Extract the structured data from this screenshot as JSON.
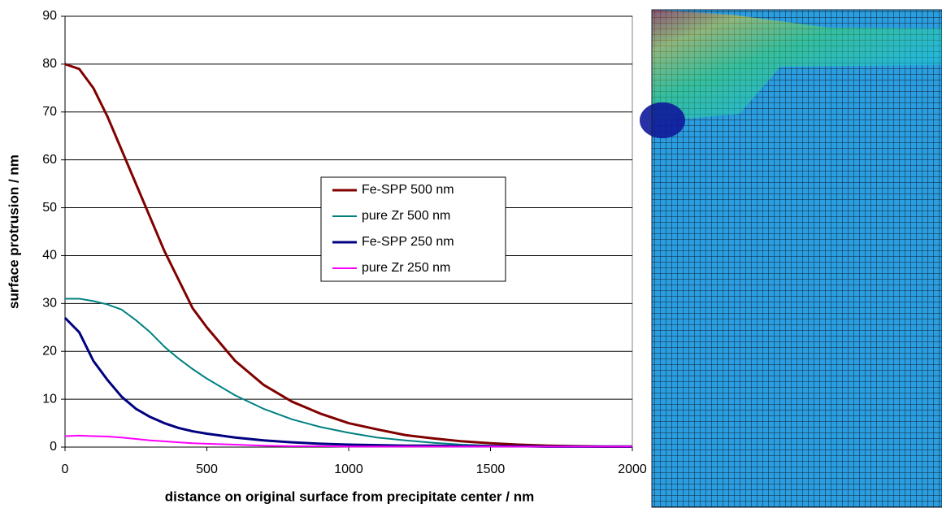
{
  "chart_data": {
    "type": "line",
    "x_label": "distance on original surface from precipitate center / nm",
    "y_label": "surface protrusion / nm",
    "x": [
      0,
      50,
      100,
      150,
      200,
      250,
      300,
      350,
      400,
      450,
      500,
      600,
      700,
      800,
      900,
      1000,
      1100,
      1200,
      1300,
      1400,
      1500,
      1600,
      1700,
      1800,
      1900,
      2000
    ],
    "series": [
      {
        "name": "Fe-SPP 500 nm",
        "color": "#800000",
        "width": 3,
        "values": [
          80,
          79,
          75,
          69,
          62,
          55,
          48,
          41,
          35,
          29,
          25,
          18,
          13,
          9.5,
          7,
          5,
          3.7,
          2.5,
          1.8,
          1.2,
          0.8,
          0.5,
          0.3,
          0.2,
          0.1,
          0.1
        ]
      },
      {
        "name": "pure Zr 500 nm",
        "color": "#008080",
        "width": 2,
        "values": [
          31,
          31,
          30.5,
          29.8,
          28.7,
          26.5,
          24,
          21,
          18.5,
          16.3,
          14.3,
          10.8,
          8,
          5.8,
          4.2,
          3,
          2,
          1.4,
          0.9,
          0.5,
          0.3,
          0.2,
          0.1,
          0.1,
          0.1,
          0.05
        ]
      },
      {
        "name": "Fe-SPP 250 nm",
        "color": "#000080",
        "width": 3,
        "values": [
          27,
          24,
          18,
          14,
          10.5,
          8,
          6.3,
          5,
          4,
          3.3,
          2.8,
          2,
          1.4,
          1,
          0.7,
          0.5,
          0.4,
          0.3,
          0.3,
          0.2,
          0.2,
          0.2,
          0.1,
          0.1,
          0.1,
          0.1
        ]
      },
      {
        "name": "pure Zr 250 nm",
        "color": "#ff00ff",
        "width": 2,
        "values": [
          2.3,
          2.4,
          2.3,
          2.2,
          2,
          1.7,
          1.4,
          1.2,
          1,
          0.8,
          0.7,
          0.5,
          0.3,
          0.2,
          0.2,
          0.1,
          0.1,
          0.1,
          0.1,
          0.1,
          0.1,
          0.1,
          0.1,
          0.1,
          0.1,
          0.1
        ]
      }
    ],
    "xlim": [
      0,
      2000
    ],
    "xticks": [
      0,
      500,
      1000,
      1500,
      2000
    ],
    "ylim": [
      0,
      90
    ],
    "yticks": [
      0,
      10,
      20,
      30,
      40,
      50,
      60,
      70,
      80,
      90
    ],
    "grid": true,
    "legend": "center"
  }
}
